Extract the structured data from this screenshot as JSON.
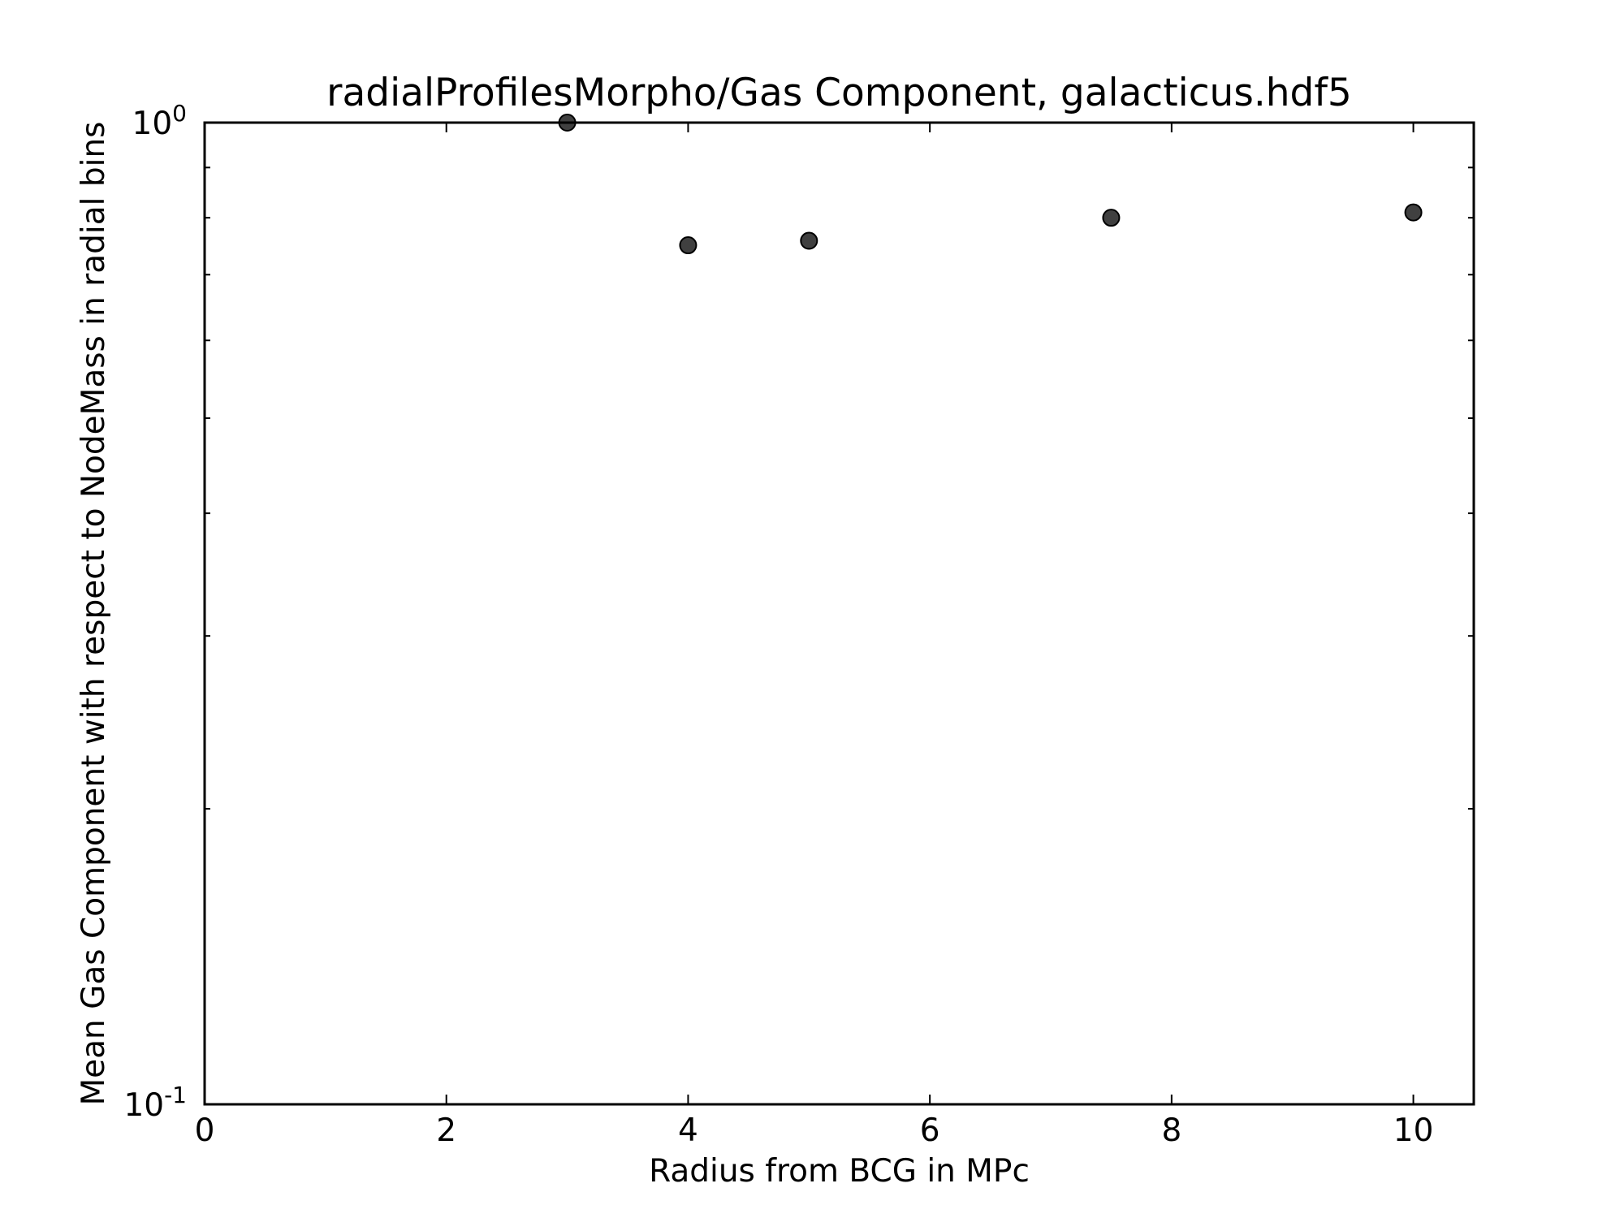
{
  "chart_data": {
    "type": "scatter",
    "title": "radialProfilesMorpho/Gas Component, galacticus.hdf5",
    "xlabel": "Radius from BCG in MPc",
    "ylabel": "Mean Gas Component with respect to NodeMass in radial bins",
    "xlim": [
      0,
      10.5
    ],
    "ylim": [
      0.1,
      1.0
    ],
    "y_scale": "log",
    "x_ticks": [
      0,
      2,
      4,
      6,
      8,
      10
    ],
    "x_tick_labels": [
      "0",
      "2",
      "4",
      "6",
      "8",
      "10"
    ],
    "y_ticks": [
      {
        "value": 0.1,
        "base": "10",
        "exp": "-1"
      },
      {
        "value": 1.0,
        "base": "10",
        "exp": "0"
      }
    ],
    "y_minor_ticks": [
      0.2,
      0.3,
      0.4,
      0.5,
      0.6,
      0.7,
      0.8,
      0.9
    ],
    "grid": false,
    "marker_color": "#404040",
    "series": [
      {
        "x": [
          3,
          4,
          5,
          7.5,
          10
        ],
        "y": [
          1.0,
          0.75,
          0.758,
          0.8,
          0.81
        ]
      }
    ]
  }
}
